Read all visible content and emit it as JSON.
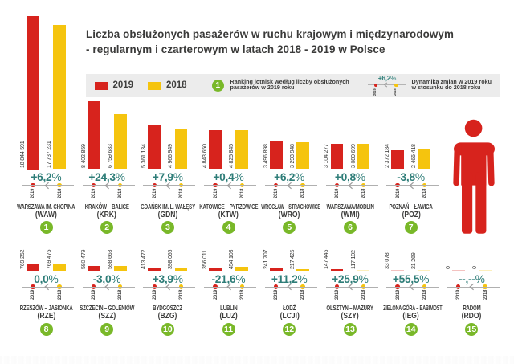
{
  "title": {
    "line1": "Liczba obsłużonych pasażerów w ruchu krajowym i międzynarodowym",
    "line2": "- regularnym i czarterowym w latach 2018 - 2019 w Polsce"
  },
  "legend": {
    "series": [
      {
        "label": "2019",
        "color": "#d7231d"
      },
      {
        "label": "2018",
        "color": "#f5c40e"
      }
    ],
    "rank_badge": "1",
    "rank_note_line1": "Ranking lotnisk według liczby obsłużonych",
    "rank_note_line2": "pasażerów w 2019 roku",
    "dynamics_example_value": "+6,2",
    "percent_sign": "%",
    "dynamics_note_line1": "Dynamika zmian w 2019 roku",
    "dynamics_note_line2": "w stosunku do 2018 roku",
    "axis_year_2019": "2019",
    "axis_year_2018": "2018"
  },
  "colors": {
    "red_2019": "#d7231d",
    "yellow_2018": "#f5c40e",
    "teal_percent": "#31807b",
    "green_badge": "#79b829",
    "dark_text": "#3c3c3b",
    "legend_bg": "#ececec",
    "axis_gray": "#b0b0b0"
  },
  "chart_data": {
    "type": "bar",
    "title": "Liczba obsłużonych pasażerów w ruchu krajowym i międzynarodowym - regularnym i czarterowym w latach 2018 - 2019 w Polsce",
    "series": [
      "2019",
      "2018"
    ],
    "airports": [
      {
        "rank": 1,
        "name": "WARSZAWA IM. CHOPINA",
        "code": "(WAW)",
        "v2019": 18844591,
        "v2018": 17737231,
        "label2019": "18 844 591",
        "label2018": "17 737 231",
        "change_pct": "+6,2"
      },
      {
        "rank": 2,
        "name": "KRAKÓW – BALICE",
        "code": "(KRK)",
        "v2019": 8402859,
        "v2018": 6759683,
        "label2019": "8 402 859",
        "label2018": "6 759 683",
        "change_pct": "+24,3"
      },
      {
        "rank": 3,
        "name": "GDAŃSK IM. L. WAŁĘSY",
        "code": "(GDN)",
        "v2019": 5361134,
        "v2018": 4966949,
        "label2019": "5 361 134",
        "label2018": "4 966 949",
        "change_pct": "+7,9"
      },
      {
        "rank": 4,
        "name": "KATOWICE – PYRZOWICE",
        "code": "(KTW)",
        "v2019": 4843650,
        "v2018": 4825845,
        "label2019": "4 843 650",
        "label2018": "4 825 845",
        "change_pct": "+0,4"
      },
      {
        "rank": 5,
        "name": "WROCŁAW – STRACHOWICE",
        "code": "(WRO)",
        "v2019": 3496898,
        "v2018": 3293948,
        "label2019": "3 496 898",
        "label2018": "3 293 948",
        "change_pct": "+6,2"
      },
      {
        "rank": 6,
        "name": "WARSZAWA/MODLIN",
        "code": "(WMI)",
        "v2019": 3104277,
        "v2018": 3080699,
        "label2019": "3 104 277",
        "label2018": "3 080 699",
        "change_pct": "+0,8"
      },
      {
        "rank": 7,
        "name": "POZNAŃ – ŁAWICA",
        "code": "(POZ)",
        "v2019": 2372184,
        "v2018": 2465418,
        "label2019": "2 372 184",
        "label2018": "2 465 418",
        "change_pct": "-3,8"
      },
      {
        "rank": 8,
        "name": "RZESZÓW – JASIONKA",
        "code": "(RZE)",
        "v2019": 769252,
        "v2018": 769475,
        "label2019": "769 252",
        "label2018": "769 475",
        "change_pct": "0,0"
      },
      {
        "rank": 9,
        "name": "SZCZECIN – GOLENIÓW",
        "code": "(SZZ)",
        "v2019": 580479,
        "v2018": 598663,
        "label2019": "580 479",
        "label2018": "598 663",
        "change_pct": "-3,0"
      },
      {
        "rank": 10,
        "name": "BYDGOSZCZ",
        "code": "(BZG)",
        "v2019": 413472,
        "v2018": 398066,
        "label2019": "413 472",
        "label2018": "398 066",
        "change_pct": "+3,9"
      },
      {
        "rank": 11,
        "name": "LUBLIN",
        "code": "(LUZ)",
        "v2019": 356011,
        "v2018": 454103,
        "label2019": "356 011",
        "label2018": "454 103",
        "change_pct": "-21,6"
      },
      {
        "rank": 12,
        "name": "ŁÓDŹ",
        "code": "(LCJI)",
        "v2019": 241707,
        "v2018": 217426,
        "label2019": "241 707",
        "label2018": "217 426",
        "change_pct": "+11,2"
      },
      {
        "rank": 13,
        "name": "OLSZTYN – MAZURY",
        "code": "(SZY)",
        "v2019": 147446,
        "v2018": 117102,
        "label2019": "147 446",
        "label2018": "117 102",
        "change_pct": "+25,9"
      },
      {
        "rank": 14,
        "name": "ZIELONA GÓRA – BABIMOST",
        "code": "(IEG)",
        "v2019": 33078,
        "v2018": 21269,
        "label2019": "33 078",
        "label2018": "21 269",
        "change_pct": "+55,5"
      },
      {
        "rank": 15,
        "name": "RADOM",
        "code": "(RDO)",
        "v2019": 0,
        "v2018": 0,
        "label2019": "0",
        "label2018": "0",
        "change_pct": "--,--"
      }
    ]
  }
}
